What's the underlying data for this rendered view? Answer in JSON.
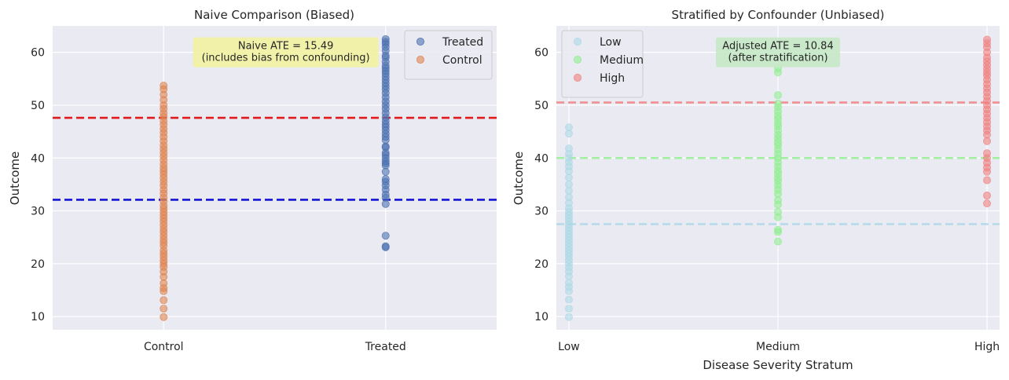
{
  "chart_data": [
    {
      "type": "scatter",
      "title": "Naive Comparison (Biased)",
      "xlabel": "",
      "ylabel": "Outcome",
      "categories": [
        "Control",
        "Treated"
      ],
      "xlim": [
        -0.5,
        1.5
      ],
      "ylim": [
        7.5,
        65
      ],
      "yticks": [
        10,
        20,
        30,
        40,
        50,
        60
      ],
      "grid": true,
      "legend_position": "top-right",
      "series": [
        {
          "name": "Treated",
          "color": "#4c72b0",
          "x": 1,
          "values": [
            23.1,
            23.3,
            25.3,
            31.3,
            32.5,
            33.1,
            34.0,
            34.8,
            35.5,
            36.0,
            37.4,
            38.6,
            39.0,
            39.4,
            40.0,
            40.6,
            41.0,
            42.0,
            42.2,
            43.4,
            44.0,
            44.6,
            45.3,
            45.9,
            46.4,
            47.0,
            47.7,
            48.5,
            49.3,
            50.0,
            50.7,
            51.5,
            52.3,
            53.0,
            53.6,
            54.2,
            54.8,
            55.4,
            56.0,
            56.5,
            57.0,
            57.5,
            58.2,
            59.0,
            59.4,
            60.3,
            61.0,
            61.6,
            62.0,
            62.5
          ]
        },
        {
          "name": "Control",
          "color": "#dd8452",
          "x": 0,
          "values": [
            9.9,
            11.5,
            13.1,
            14.8,
            15.4,
            16.3,
            17.5,
            18.5,
            19.4,
            20.0,
            20.6,
            21.3,
            21.9,
            22.5,
            23.4,
            24.0,
            24.6,
            25.3,
            26.0,
            26.6,
            27.3,
            28.0,
            28.6,
            29.2,
            29.8,
            30.4,
            31.0,
            31.8,
            32.5,
            33.3,
            34.0,
            34.8,
            35.5,
            36.2,
            36.9,
            37.5,
            38.1,
            38.8,
            39.6,
            40.3,
            41.0,
            41.7,
            42.4,
            43.2,
            44.0,
            44.8,
            45.5,
            46.3,
            47.0,
            47.8,
            48.5,
            49.3,
            50.0,
            51.0,
            52.0,
            53.0,
            53.7
          ]
        }
      ],
      "hlines": [
        {
          "y": 47.6,
          "color": "#e31a1c"
        },
        {
          "y": 32.1,
          "color": "#1515d6"
        }
      ],
      "annotation": {
        "lines": [
          "Naive ATE = 15.49",
          "(includes bias from confounding)"
        ],
        "bg": "#f2f2a1",
        "x": 0.55,
        "y": 59.7
      }
    },
    {
      "type": "scatter",
      "title": "Stratified by Confounder (Unbiased)",
      "xlabel": "Disease Severity Stratum",
      "ylabel": "Outcome",
      "categories": [
        "Low",
        "Medium",
        "High"
      ],
      "xlim": [
        -0.06,
        2.06
      ],
      "ylim": [
        7.5,
        65
      ],
      "yticks": [
        10,
        20,
        30,
        40,
        50,
        60
      ],
      "grid": true,
      "legend_position": "top-left",
      "series": [
        {
          "name": "Low",
          "color": "#add8e6",
          "x": 0,
          "values": [
            9.9,
            11.5,
            13.2,
            14.8,
            15.6,
            16.4,
            17.6,
            18.5,
            19.3,
            20.0,
            20.7,
            21.4,
            22.0,
            22.6,
            23.2,
            23.8,
            24.4,
            25.0,
            25.6,
            26.2,
            26.8,
            27.4,
            28.0,
            28.6,
            29.2,
            29.8,
            30.5,
            31.5,
            32.6,
            33.8,
            35.0,
            36.3,
            37.5,
            38.4,
            39.2,
            40.0,
            40.8,
            41.8,
            44.6,
            45.8
          ]
        },
        {
          "name": "Medium",
          "color": "#90ee90",
          "x": 1,
          "values": [
            24.2,
            26.0,
            26.4,
            28.8,
            29.8,
            31.2,
            32.0,
            33.2,
            34.0,
            34.8,
            35.6,
            36.2,
            37.0,
            37.6,
            38.4,
            39.2,
            40.0,
            40.8,
            41.6,
            42.4,
            43.0,
            43.7,
            44.4,
            45.2,
            46.0,
            46.6,
            47.4,
            48.0,
            48.8,
            49.6,
            50.3,
            51.9,
            56.2,
            57.0
          ]
        },
        {
          "name": "High",
          "color": "#f08080",
          "x": 2,
          "values": [
            31.4,
            32.9,
            35.8,
            37.4,
            38.2,
            39.1,
            40.0,
            40.9,
            43.2,
            44.4,
            45.2,
            46.0,
            46.8,
            47.6,
            48.4,
            49.2,
            50.0,
            50.8,
            51.6,
            52.4,
            53.2,
            54.0,
            54.8,
            55.6,
            56.2,
            56.9,
            57.6,
            58.3,
            59.0,
            60.0,
            61.0,
            61.7,
            62.4
          ]
        }
      ],
      "hlines": [
        {
          "y": 27.5,
          "color": "#add8e6"
        },
        {
          "y": 40.0,
          "color": "#90ee90"
        },
        {
          "y": 50.5,
          "color": "#f08080"
        }
      ],
      "annotation": {
        "lines": [
          "Adjusted ATE = 10.84",
          "(after stratification)"
        ],
        "bg": "#c6e9c6",
        "x": 1.0,
        "y": 59.7
      }
    }
  ]
}
